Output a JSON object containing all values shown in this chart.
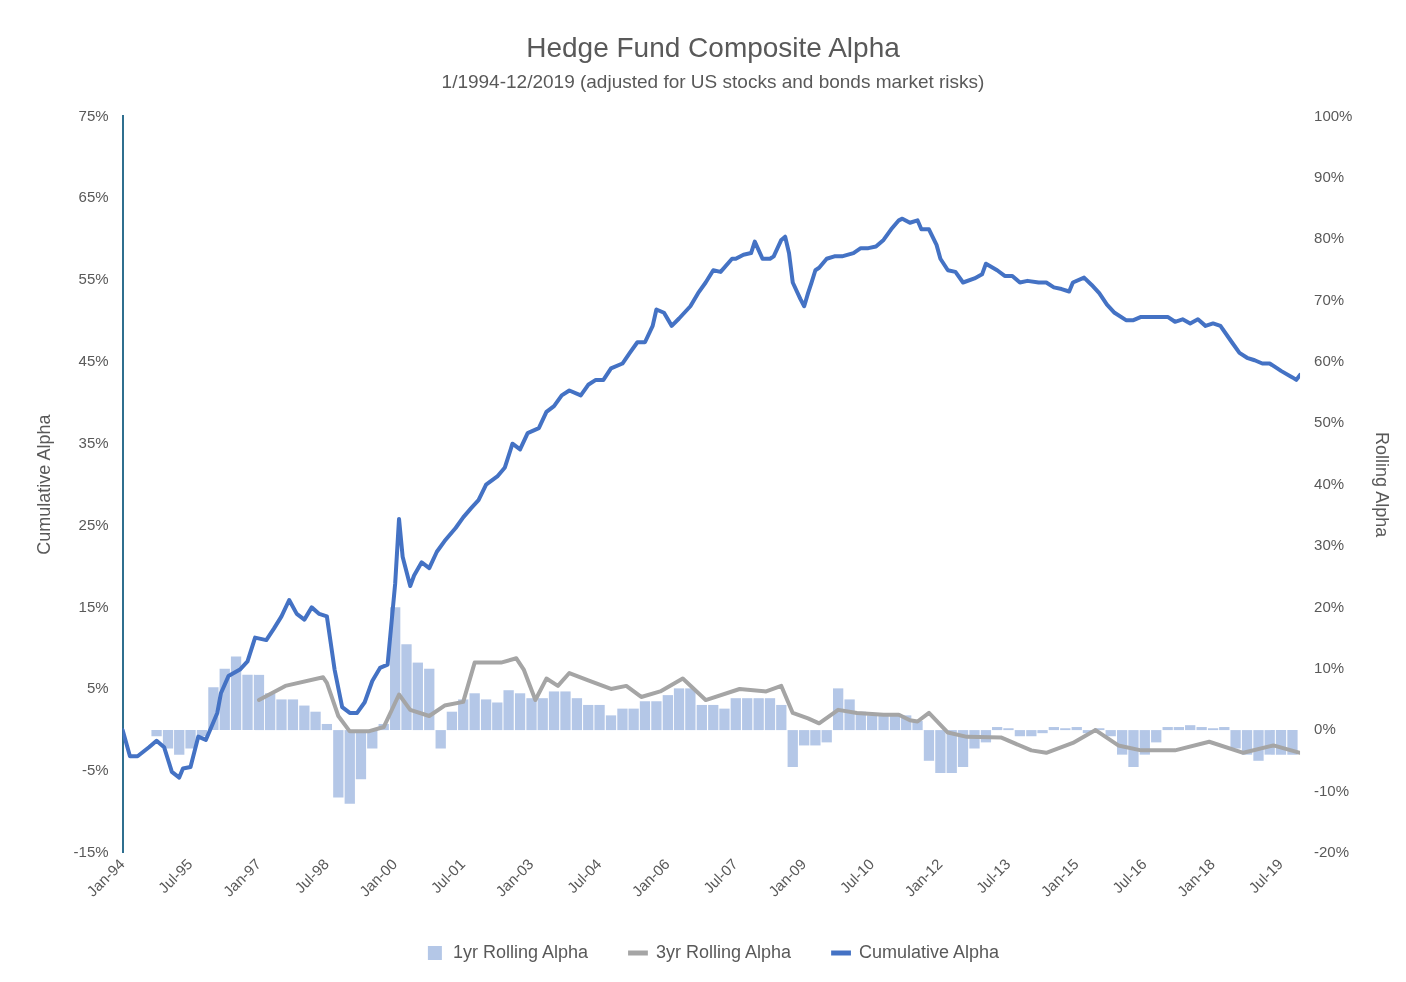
{
  "chart_data": {
    "type": "line",
    "title": "Hedge Fund Composite Alpha",
    "subtitle": "1/1994-12/2019 (adjusted for US stocks and bonds market risks)",
    "ylabel": "Cumulative Alpha",
    "y2label": "Rolling Alpha",
    "grid": false,
    "legend": "bottom",
    "marker": "none",
    "line_style": "solid",
    "xlim": [
      "1994-01",
      "2019-12"
    ],
    "xticks": [
      {
        "value": "1994-01",
        "label": "Jan-94"
      },
      {
        "value": "1995-07",
        "label": "Jul-95"
      },
      {
        "value": "1997-01",
        "label": "Jan-97"
      },
      {
        "value": "1998-07",
        "label": "Jul-98"
      },
      {
        "value": "2000-01",
        "label": "Jan-00"
      },
      {
        "value": "2001-07",
        "label": "Jul-01"
      },
      {
        "value": "2003-01",
        "label": "Jan-03"
      },
      {
        "value": "2004-07",
        "label": "Jul-04"
      },
      {
        "value": "2006-01",
        "label": "Jan-06"
      },
      {
        "value": "2007-07",
        "label": "Jul-07"
      },
      {
        "value": "2009-01",
        "label": "Jan-09"
      },
      {
        "value": "2010-07",
        "label": "Jul-10"
      },
      {
        "value": "2012-01",
        "label": "Jan-12"
      },
      {
        "value": "2013-07",
        "label": "Jul-13"
      },
      {
        "value": "2015-01",
        "label": "Jan-15"
      },
      {
        "value": "2016-07",
        "label": "Jul-16"
      },
      {
        "value": "2018-01",
        "label": "Jan-18"
      },
      {
        "value": "2019-07",
        "label": "Jul-19"
      }
    ],
    "ylim": [
      -15,
      75
    ],
    "yticks": [
      {
        "value": -15,
        "label": "-15%"
      },
      {
        "value": -5,
        "label": "-5%"
      },
      {
        "value": 5,
        "label": "5%"
      },
      {
        "value": 15,
        "label": "15%"
      },
      {
        "value": 25,
        "label": "25%"
      },
      {
        "value": 35,
        "label": "35%"
      },
      {
        "value": 45,
        "label": "45%"
      },
      {
        "value": 55,
        "label": "55%"
      },
      {
        "value": 65,
        "label": "65%"
      },
      {
        "value": 75,
        "label": "75%"
      }
    ],
    "y2lim": [
      -20,
      100
    ],
    "y2ticks": [
      {
        "value": -20,
        "label": "-20%"
      },
      {
        "value": -10,
        "label": "-10%"
      },
      {
        "value": 0,
        "label": "0%"
      },
      {
        "value": 10,
        "label": "10%"
      },
      {
        "value": 20,
        "label": "20%"
      },
      {
        "value": 30,
        "label": "30%"
      },
      {
        "value": 40,
        "label": "40%"
      },
      {
        "value": 50,
        "label": "50%"
      },
      {
        "value": 60,
        "label": "60%"
      },
      {
        "value": 70,
        "label": "70%"
      },
      {
        "value": 80,
        "label": "80%"
      },
      {
        "value": 90,
        "label": "90%"
      },
      {
        "value": 100,
        "label": "100%"
      }
    ],
    "series": [
      {
        "name": "1yr Rolling Alpha",
        "type": "bar",
        "axis": "y2",
        "color": "#b4c7e7",
        "x": [
          "1994-10",
          "1995-01",
          "1995-04",
          "1995-07",
          "1995-10",
          "1996-01",
          "1996-04",
          "1996-07",
          "1996-10",
          "1997-01",
          "1997-04",
          "1997-07",
          "1997-10",
          "1998-01",
          "1998-04",
          "1998-07",
          "1998-10",
          "1999-01",
          "1999-04",
          "1999-07",
          "1999-10",
          "2000-01",
          "2000-04",
          "2000-07",
          "2000-10",
          "2001-01",
          "2001-04",
          "2001-07",
          "2001-10",
          "2002-01",
          "2002-04",
          "2002-07",
          "2002-10",
          "2003-01",
          "2003-04",
          "2003-07",
          "2003-10",
          "2004-01",
          "2004-04",
          "2004-07",
          "2004-10",
          "2005-01",
          "2005-04",
          "2005-07",
          "2005-10",
          "2006-01",
          "2006-04",
          "2006-07",
          "2006-10",
          "2007-01",
          "2007-04",
          "2007-07",
          "2007-10",
          "2008-01",
          "2008-04",
          "2008-07",
          "2008-10",
          "2009-01",
          "2009-04",
          "2009-07",
          "2009-10",
          "2010-01",
          "2010-04",
          "2010-07",
          "2010-10",
          "2011-01",
          "2011-04",
          "2011-07",
          "2011-10",
          "2012-01",
          "2012-04",
          "2012-07",
          "2012-10",
          "2013-01",
          "2013-04",
          "2013-07",
          "2013-10",
          "2014-01",
          "2014-04",
          "2014-07",
          "2014-10",
          "2015-01",
          "2015-04",
          "2015-07",
          "2015-10",
          "2016-01",
          "2016-04",
          "2016-07",
          "2016-10",
          "2017-01",
          "2017-04",
          "2017-07",
          "2017-10",
          "2018-01",
          "2018-04",
          "2018-07",
          "2018-10",
          "2019-01",
          "2019-04",
          "2019-07",
          "2019-10"
        ],
        "values": [
          -1,
          -3,
          -4,
          -3,
          -1,
          7,
          10,
          12,
          9,
          9,
          6,
          5,
          5,
          4,
          3,
          1,
          -11,
          -12,
          -8,
          -3,
          1,
          20,
          14,
          11,
          10,
          -3,
          3,
          5,
          6,
          5,
          4.5,
          6.5,
          6,
          5.2,
          5.2,
          6.3,
          6.3,
          5.2,
          4.1,
          4.1,
          2.4,
          3.5,
          3.5,
          4.7,
          4.7,
          5.7,
          6.8,
          6.8,
          4.1,
          4.1,
          3.5,
          5.2,
          5.2,
          5.2,
          5.2,
          4.1,
          -6,
          -2.5,
          -2.5,
          -2,
          6.8,
          5,
          3,
          2.4,
          2.4,
          2.4,
          2.4,
          1.5,
          -5,
          -7,
          -7,
          -6,
          -3,
          -2,
          0.5,
          0.3,
          -1,
          -1,
          -0.5,
          0.5,
          0.3,
          0.5,
          -0.5,
          0.3,
          -1,
          -4,
          -6,
          -4,
          -2,
          0.5,
          0.5,
          0.8,
          0.5,
          0.3,
          0.5,
          -3,
          -4,
          -5,
          -4,
          -4,
          -4
        ]
      },
      {
        "name": "3yr Rolling Alpha",
        "type": "line",
        "axis": "y2",
        "color": "#a5a5a5",
        "x": [
          "1997-01",
          "1997-08",
          "1998-06",
          "1998-07",
          "1998-10",
          "1999-01",
          "1999-06",
          "1999-10",
          "2000-02",
          "2000-05",
          "2000-10",
          "2001-02",
          "2001-07",
          "2001-10",
          "2002-05",
          "2002-09",
          "2002-11",
          "2003-02",
          "2003-05",
          "2003-08",
          "2003-11",
          "2004-04",
          "2004-10",
          "2005-02",
          "2005-06",
          "2005-11",
          "2006-05",
          "2006-11",
          "2007-08",
          "2008-03",
          "2008-07",
          "2008-10",
          "2009-02",
          "2009-05",
          "2009-10",
          "2010-03",
          "2010-10",
          "2011-02",
          "2011-05",
          "2011-07",
          "2011-10",
          "2012-03",
          "2012-08",
          "2013-05",
          "2014-01",
          "2014-05",
          "2014-12",
          "2015-06",
          "2015-12",
          "2016-06",
          "2017-03",
          "2017-12",
          "2018-09",
          "2019-05",
          "2019-12"
        ],
        "values": [
          4.9,
          7.2,
          8.6,
          7.7,
          2.3,
          -0.2,
          -0.2,
          0.5,
          5.8,
          3.3,
          2.3,
          4.0,
          4.6,
          11.0,
          11.0,
          11.7,
          9.8,
          4.9,
          8.4,
          7.2,
          9.3,
          8.1,
          6.7,
          7.2,
          5.4,
          6.3,
          8.4,
          4.9,
          6.7,
          6.3,
          7.2,
          2.8,
          1.9,
          1.1,
          3.3,
          2.8,
          2.5,
          2.5,
          1.6,
          1.4,
          2.8,
          -0.4,
          -1.1,
          -1.2,
          -3.3,
          -3.7,
          -2.1,
          0.0,
          -2.5,
          -3.3,
          -3.3,
          -1.9,
          -3.7,
          -2.5,
          -3.7
        ]
      },
      {
        "name": "Cumulative Alpha",
        "color": "#4472c4",
        "x": [
          "1994-01",
          "1994-03",
          "1994-05",
          "1994-08",
          "1994-10",
          "1994-12",
          "1995-02",
          "1995-04",
          "1995-05",
          "1995-07",
          "1995-09",
          "1995-11",
          "1996-02",
          "1996-03",
          "1996-05",
          "1996-08",
          "1996-10",
          "1996-12",
          "1997-03",
          "1997-05",
          "1997-07",
          "1997-09",
          "1997-11",
          "1998-01",
          "1998-03",
          "1998-05",
          "1998-07",
          "1998-09",
          "1998-11",
          "1999-01",
          "1999-03",
          "1999-05",
          "1999-07",
          "1999-09",
          "1999-11",
          "2000-01",
          "2000-02",
          "2000-03",
          "2000-05",
          "2000-06",
          "2000-08",
          "2000-10",
          "2000-12",
          "2001-02",
          "2001-05",
          "2001-07",
          "2001-09",
          "2001-11",
          "2002-01",
          "2002-04",
          "2002-06",
          "2002-08",
          "2002-10",
          "2002-12",
          "2003-03",
          "2003-05",
          "2003-07",
          "2003-09",
          "2003-11",
          "2004-02",
          "2004-04",
          "2004-06",
          "2004-08",
          "2004-10",
          "2005-01",
          "2005-03",
          "2005-05",
          "2005-07",
          "2005-09",
          "2005-10",
          "2005-12",
          "2006-02",
          "2006-04",
          "2006-07",
          "2006-09",
          "2006-11",
          "2007-01",
          "2007-03",
          "2007-06",
          "2007-07",
          "2007-09",
          "2007-11",
          "2007-12",
          "2008-02",
          "2008-04",
          "2008-05",
          "2008-07",
          "2008-08",
          "2008-09",
          "2008-10",
          "2008-12",
          "2009-01",
          "2009-02",
          "2009-03",
          "2009-04",
          "2009-05",
          "2009-07",
          "2009-09",
          "2009-11",
          "2010-02",
          "2010-04",
          "2010-06",
          "2010-08",
          "2010-10",
          "2010-12",
          "2011-02",
          "2011-03",
          "2011-05",
          "2011-07",
          "2011-08",
          "2011-10",
          "2011-12",
          "2012-01",
          "2012-03",
          "2012-05",
          "2012-07",
          "2012-10",
          "2012-12",
          "2013-01",
          "2013-04",
          "2013-06",
          "2013-08",
          "2013-10",
          "2013-12",
          "2014-03",
          "2014-05",
          "2014-07",
          "2014-09",
          "2014-11",
          "2014-12",
          "2015-03",
          "2015-05",
          "2015-07",
          "2015-09",
          "2015-11",
          "2016-02",
          "2016-04",
          "2016-06",
          "2016-08",
          "2016-10",
          "2017-01",
          "2017-03",
          "2017-05",
          "2017-07",
          "2017-09",
          "2017-11",
          "2018-01",
          "2018-03",
          "2018-06",
          "2018-08",
          "2018-10",
          "2018-12",
          "2019-02",
          "2019-04",
          "2019-06",
          "2019-07",
          "2019-10",
          "2019-11",
          "2019-12"
        ],
        "values": [
          0.0,
          -3.2,
          -3.2,
          -2.1,
          -1.3,
          -2.1,
          -5.1,
          -5.8,
          -4.7,
          -4.5,
          -0.8,
          -1.2,
          2.1,
          4.5,
          6.6,
          7.4,
          8.4,
          11.3,
          11.0,
          12.4,
          13.9,
          15.9,
          14.2,
          13.5,
          15.0,
          14.2,
          13.9,
          7.4,
          2.8,
          2.1,
          2.1,
          3.4,
          6.0,
          7.6,
          8.0,
          17.9,
          25.8,
          21.2,
          17.6,
          18.9,
          20.5,
          19.8,
          21.8,
          23.1,
          24.7,
          26.0,
          27.1,
          28.1,
          30.0,
          31.0,
          32.1,
          35.0,
          34.3,
          36.3,
          36.9,
          38.9,
          39.6,
          40.9,
          41.5,
          40.9,
          42.2,
          42.8,
          42.8,
          44.2,
          44.8,
          46.1,
          47.4,
          47.4,
          49.4,
          51.4,
          51.0,
          49.4,
          50.3,
          51.8,
          53.4,
          54.7,
          56.2,
          56.0,
          57.6,
          57.6,
          58.1,
          58.3,
          59.7,
          57.6,
          57.6,
          57.9,
          59.9,
          60.3,
          58.3,
          54.7,
          52.7,
          51.8,
          53.4,
          54.7,
          56.2,
          56.5,
          57.6,
          57.9,
          57.9,
          58.3,
          58.9,
          58.9,
          59.1,
          59.9,
          61.2,
          62.3,
          62.5,
          62.0,
          62.3,
          61.2,
          61.2,
          59.3,
          57.6,
          56.2,
          56.0,
          54.7,
          55.2,
          55.7,
          57.0,
          56.2,
          55.5,
          55.5,
          54.7,
          54.9,
          54.7,
          54.7,
          54.1,
          53.9,
          53.6,
          54.7,
          55.3,
          54.4,
          53.4,
          52.0,
          51.0,
          50.1,
          50.1,
          50.5,
          50.5,
          50.5,
          50.5,
          49.9,
          50.2,
          49.7,
          50.2,
          49.4,
          49.7,
          49.4,
          47.4,
          46.1,
          45.5,
          45.2,
          44.8,
          44.8,
          44.2,
          43.9,
          43.1,
          42.8,
          43.4
        ]
      }
    ]
  }
}
